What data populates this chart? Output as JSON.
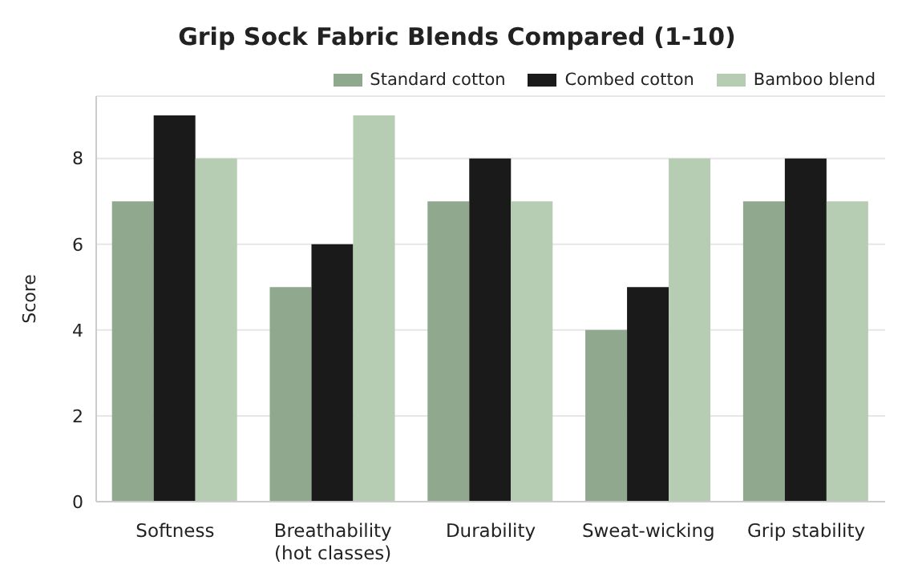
{
  "chart_data": {
    "type": "bar",
    "title": "Grip Sock Fabric Blends Compared (1-10)",
    "ylabel": "Score",
    "categories": [
      "Softness",
      "Breathability\n(hot classes)",
      "Durability",
      "Sweat-wicking",
      "Grip stability"
    ],
    "series": [
      {
        "name": "Standard cotton",
        "color": "#8fa88e",
        "values": [
          7,
          5,
          7,
          4,
          7
        ]
      },
      {
        "name": "Combed cotton",
        "color": "#1a1a1a",
        "values": [
          9,
          6,
          8,
          5,
          8
        ]
      },
      {
        "name": "Bamboo blend",
        "color": "#b7cdb3",
        "values": [
          8,
          9,
          7,
          8,
          7
        ]
      }
    ],
    "ylim": [
      0,
      9.45
    ],
    "yticks": [
      0,
      2,
      4,
      6,
      8
    ],
    "grid": "y",
    "legend": "top right"
  }
}
